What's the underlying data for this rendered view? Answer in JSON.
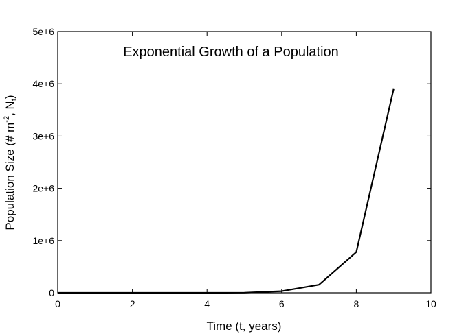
{
  "chart_data": {
    "type": "line",
    "title": "Exponential Growth of a Population",
    "xlabel": "Time (t, years)",
    "ylabel": {
      "base": "Population Size (# m",
      "sup": "-2",
      "middle": ", N",
      "sub": "t",
      "end": ")"
    },
    "xlim": [
      0,
      10
    ],
    "ylim": [
      0,
      5000000
    ],
    "x_ticks": [
      0,
      2,
      4,
      6,
      8,
      10
    ],
    "x_tick_labels": [
      "0",
      "2",
      "4",
      "6",
      "8",
      "10"
    ],
    "y_ticks": [
      0,
      1000000,
      2000000,
      3000000,
      4000000,
      5000000
    ],
    "y_tick_labels": [
      "0",
      "1e+6",
      "2e+6",
      "3e+6",
      "4e+6",
      "5e+6"
    ],
    "grid": false,
    "line_color": "#000000",
    "series": [
      {
        "x": [
          0,
          1,
          2,
          3,
          4,
          5,
          6,
          7,
          8,
          9
        ],
        "values": [
          1,
          5,
          25,
          125,
          625,
          3125,
          31000,
          155000,
          780000,
          3900000
        ]
      }
    ]
  }
}
